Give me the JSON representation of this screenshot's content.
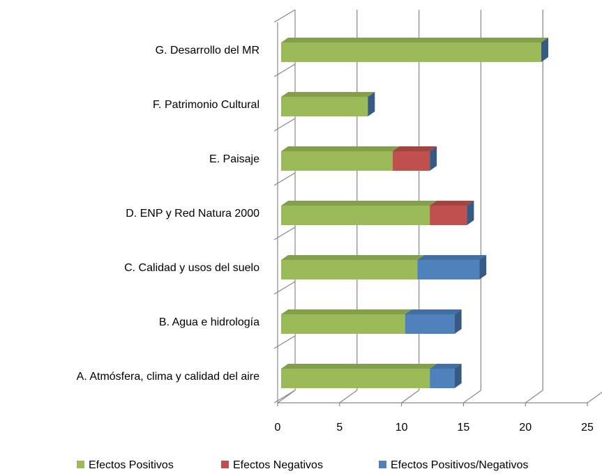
{
  "chart_data": {
    "type": "bar",
    "orientation": "horizontal",
    "stacked": true,
    "categories": [
      "A. Atmósfera, clima y calidad del aire",
      "B. Agua e hidrología",
      "C. Calidad  y usos del suelo",
      "D. ENP  y Red Natura 2000",
      "E. Paisaje ",
      "F. Patrimonio  Cultural",
      "G. Desarrollo del MR"
    ],
    "series": [
      {
        "name": "Efectos Positivos",
        "color": "#9bbb59",
        "values": [
          12,
          10,
          11,
          12,
          9,
          7,
          21
        ]
      },
      {
        "name": "Efectos Negativos",
        "color": "#c0504d",
        "values": [
          0,
          0,
          0,
          3,
          3,
          0,
          0
        ]
      },
      {
        "name": "Efectos Positivos/Negativos",
        "color": "#4f81bd",
        "values": [
          2,
          4,
          5,
          0,
          0,
          0,
          0
        ]
      }
    ],
    "xlim": [
      0,
      25
    ],
    "xticks": [
      0,
      5,
      10,
      15,
      20,
      25
    ],
    "grid": true,
    "legend": "bottom"
  }
}
